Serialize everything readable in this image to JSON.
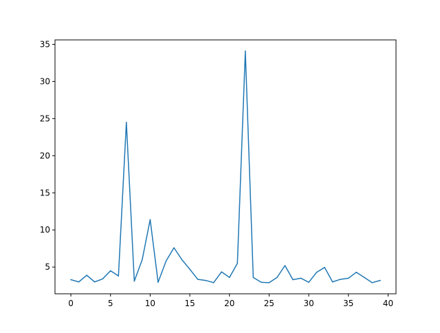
{
  "chart_data": {
    "type": "line",
    "title": "",
    "xlabel": "",
    "ylabel": "",
    "xlim": [
      -2,
      41
    ],
    "ylim": [
      1.4,
      35.6
    ],
    "xticks": [
      0,
      5,
      10,
      15,
      20,
      25,
      30,
      35,
      40
    ],
    "yticks": [
      5,
      10,
      15,
      20,
      25,
      30,
      35
    ],
    "grid": false,
    "legend": "none",
    "colors": {
      "line": "#1f77b4",
      "axes": "#000000",
      "background": "#ffffff"
    },
    "series": [
      {
        "x": [
          0,
          1,
          2,
          3,
          4,
          5,
          6,
          7,
          8,
          9,
          10,
          11,
          12,
          13,
          14,
          15,
          16,
          17,
          18,
          19,
          20,
          21,
          22,
          23,
          24,
          25,
          26,
          27,
          28,
          29,
          30,
          31,
          32,
          33,
          34,
          35,
          36,
          37,
          38,
          39
        ],
        "values": [
          3.3,
          3.0,
          3.9,
          3.0,
          3.4,
          4.5,
          3.8,
          24.5,
          3.1,
          6.0,
          11.4,
          2.95,
          5.8,
          7.6,
          6.0,
          4.7,
          3.35,
          3.2,
          2.9,
          4.35,
          3.6,
          5.5,
          34.1,
          3.6,
          2.95,
          2.9,
          3.6,
          5.2,
          3.3,
          3.5,
          2.95,
          4.3,
          4.95,
          3.0,
          3.35,
          3.5,
          4.3,
          3.6,
          2.9,
          3.2
        ]
      }
    ]
  }
}
